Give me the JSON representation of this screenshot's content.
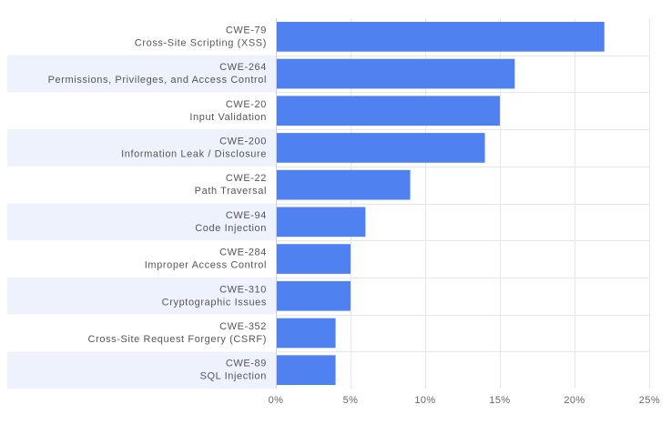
{
  "chart_data": {
    "type": "bar",
    "orientation": "horizontal",
    "categories": [
      {
        "code": "CWE-79",
        "name": "Cross-Site Scripting (XSS)"
      },
      {
        "code": "CWE-264",
        "name": "Permissions, Privileges, and Access Control"
      },
      {
        "code": "CWE-20",
        "name": "Input Validation"
      },
      {
        "code": "CWE-200",
        "name": "Information Leak / Disclosure"
      },
      {
        "code": "CWE-22",
        "name": "Path Traversal"
      },
      {
        "code": "CWE-94",
        "name": "Code Injection"
      },
      {
        "code": "CWE-284",
        "name": "Improper Access Control"
      },
      {
        "code": "CWE-310",
        "name": "Cryptographic Issues"
      },
      {
        "code": "CWE-352",
        "name": "Cross-Site Request Forgery (CSRF)"
      },
      {
        "code": "CWE-89",
        "name": "SQL Injection"
      }
    ],
    "values": [
      22,
      16,
      15,
      14,
      9,
      6,
      5,
      5,
      4,
      4
    ],
    "xlim": [
      0,
      25
    ],
    "xticks": [
      0,
      5,
      10,
      15,
      20,
      25
    ],
    "xtick_labels": [
      "0%",
      "5%",
      "10%",
      "15%",
      "20%",
      "25%"
    ],
    "title": "",
    "xlabel": "",
    "ylabel": "",
    "grid": true,
    "legend": "none",
    "colors": {
      "bar": "#4f81f0",
      "band": "#eef2fc",
      "grid": "#e6e6e6"
    }
  }
}
